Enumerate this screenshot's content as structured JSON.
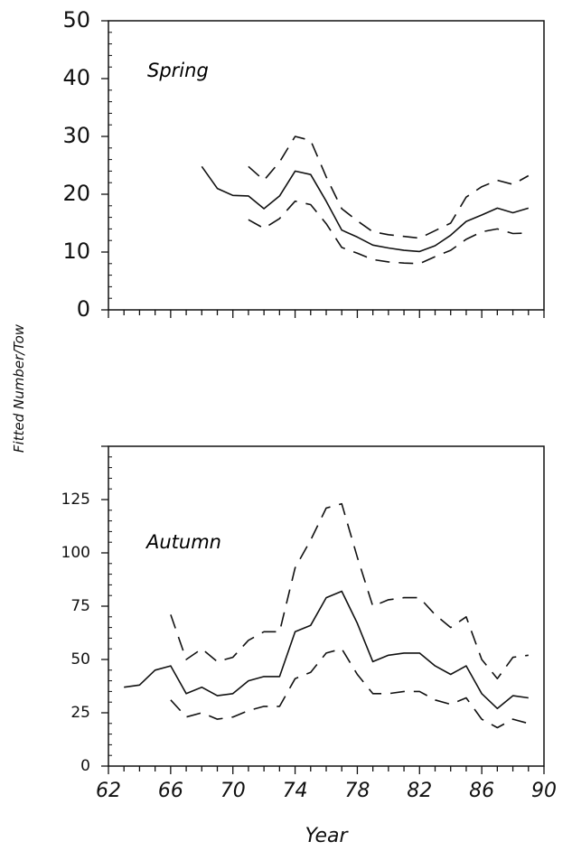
{
  "chart_data": [
    {
      "type": "line",
      "title": "Spring",
      "xlabel": "Year",
      "ylabel": "Fitted Number/Tow",
      "xlim": [
        62,
        90
      ],
      "ylim": [
        0,
        50
      ],
      "yticks": [
        0,
        10,
        20,
        30,
        40,
        50
      ],
      "ytick_labels": [
        "0",
        "10",
        "20",
        "30",
        "40",
        "50"
      ],
      "grid": false,
      "series": [
        {
          "style": "solid",
          "x": [
            68,
            69,
            70,
            71,
            72,
            73,
            74,
            75,
            76,
            77,
            78,
            79,
            80,
            81,
            82,
            83,
            84,
            85,
            86,
            87,
            88,
            89
          ],
          "y": [
            24.8,
            21,
            19.8,
            19.7,
            17.5,
            19.7,
            24,
            23.4,
            18.8,
            13.8,
            12.6,
            11.2,
            10.7,
            10.3,
            10.1,
            11.1,
            12.9,
            15.3,
            16.4,
            17.6,
            16.8,
            17.6
          ]
        },
        {
          "style": "dashed",
          "x": [
            71,
            72,
            73,
            74,
            75,
            76,
            77,
            78,
            79,
            80,
            81,
            82,
            83,
            84,
            85,
            86,
            87,
            88,
            89
          ],
          "y": [
            24.8,
            22.4,
            25.6,
            30,
            29.3,
            23,
            17.5,
            15.4,
            13.5,
            13,
            12.7,
            12.4,
            13.7,
            15,
            19.5,
            21.3,
            22.4,
            21.7,
            23.2
          ]
        },
        {
          "style": "dashed",
          "x": [
            71,
            72,
            73,
            74,
            75,
            76,
            77,
            78,
            79,
            80,
            81,
            82,
            83,
            84,
            85,
            86,
            87,
            88,
            89
          ],
          "y": [
            15.6,
            14.1,
            15.8,
            18.8,
            18.2,
            14.9,
            10.8,
            9.8,
            8.7,
            8.3,
            8.1,
            8,
            9.2,
            10.3,
            12.2,
            13.5,
            14,
            13.2,
            13.3
          ]
        }
      ]
    },
    {
      "type": "line",
      "title": "Autumn",
      "xlabel": "Year",
      "ylabel": "Fitted Number/Tow",
      "xlim": [
        62,
        90
      ],
      "ylim": [
        0,
        150
      ],
      "yticks": [
        0,
        25,
        50,
        75,
        100,
        125
      ],
      "ytick_labels": [
        "0",
        "25",
        "50",
        "75",
        "100",
        "125"
      ],
      "xticks": [
        62,
        66,
        70,
        74,
        78,
        82,
        86,
        90
      ],
      "xtick_labels": [
        "62",
        "66",
        "70",
        "74",
        "78",
        "82",
        "86",
        "90"
      ],
      "grid": false,
      "series": [
        {
          "style": "solid",
          "x": [
            63,
            64,
            65,
            66,
            67,
            68,
            69,
            70,
            71,
            72,
            73,
            74,
            75,
            76,
            77,
            78,
            79,
            80,
            81,
            82,
            83,
            84,
            85,
            86,
            87,
            88,
            89
          ],
          "y": [
            37,
            38,
            45,
            47,
            34,
            37,
            33,
            34,
            40,
            42,
            42,
            63,
            66,
            79,
            82,
            67,
            49,
            52,
            53,
            53,
            47,
            43,
            47,
            34,
            27,
            33,
            32
          ]
        },
        {
          "style": "dashed",
          "x": [
            66,
            67,
            68,
            69,
            70,
            71,
            72,
            73,
            74,
            75,
            76,
            77,
            78,
            79,
            80,
            81,
            82,
            83,
            84,
            85,
            86,
            87,
            88,
            89
          ],
          "y": [
            71,
            50,
            55,
            49,
            51,
            59,
            63,
            63,
            93,
            106,
            121,
            123,
            98,
            75,
            78,
            79,
            79,
            71,
            65,
            70,
            50,
            41,
            51,
            52
          ]
        },
        {
          "style": "dashed",
          "x": [
            66,
            67,
            68,
            69,
            70,
            71,
            72,
            73,
            74,
            75,
            76,
            77,
            78,
            79,
            80,
            81,
            82,
            83,
            84,
            85,
            86,
            87,
            88,
            89
          ],
          "y": [
            31,
            23,
            25,
            22,
            23,
            26,
            28,
            28,
            41,
            44,
            53,
            55,
            43,
            34,
            34,
            35,
            35,
            31,
            29,
            32,
            22,
            18,
            22,
            20
          ]
        }
      ]
    }
  ]
}
